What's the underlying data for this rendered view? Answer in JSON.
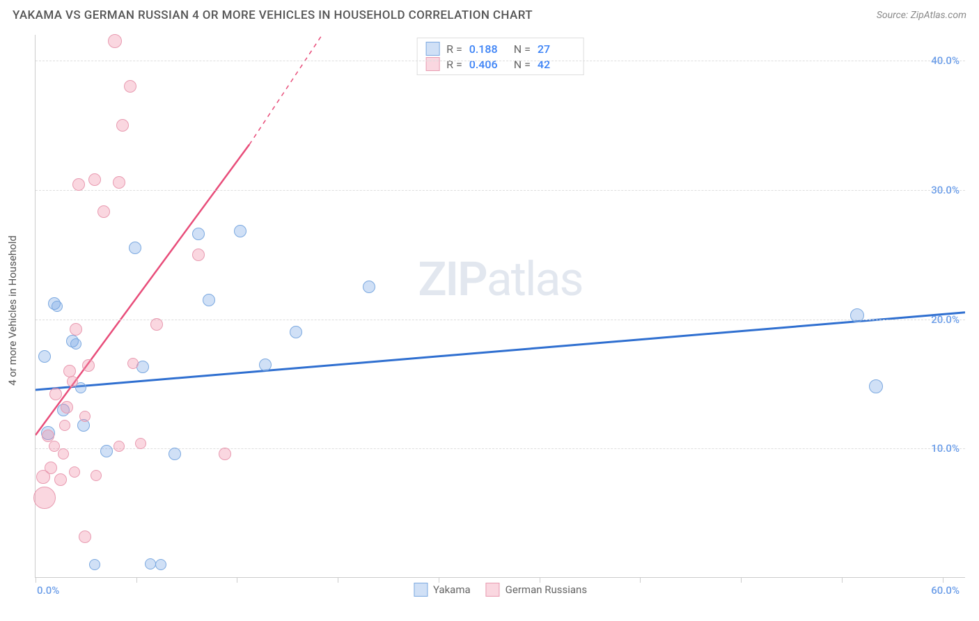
{
  "title": "YAKAMA VS GERMAN RUSSIAN 4 OR MORE VEHICLES IN HOUSEHOLD CORRELATION CHART",
  "source": "Source: ZipAtlas.com",
  "y_axis_title": "4 or more Vehicles in Household",
  "watermark_a": "ZIP",
  "watermark_b": "atlas",
  "chart": {
    "type": "scatter",
    "xlim": [
      0,
      60
    ],
    "ylim": [
      0,
      42
    ],
    "x_tick_positions": [
      0,
      6.5,
      13,
      19.5,
      26,
      32.5,
      39,
      45.5,
      52,
      58.5
    ],
    "x_label_min": "0.0%",
    "x_label_max": "60.0%",
    "y_ticks": [
      {
        "v": 10,
        "label": "10.0%"
      },
      {
        "v": 20,
        "label": "20.0%"
      },
      {
        "v": 30,
        "label": "30.0%"
      },
      {
        "v": 40,
        "label": "40.0%"
      }
    ],
    "background_color": "#ffffff",
    "grid_color": "#dddddd",
    "series": [
      {
        "name": "Yakama",
        "fill": "rgba(120,165,230,0.35)",
        "stroke": "#7aa8e0",
        "reg_color": "#2f6fd0",
        "R": "0.188",
        "N": "27",
        "reg_line": {
          "x1": 0,
          "y1": 14.5,
          "x2": 60,
          "y2": 20.5
        },
        "points": [
          {
            "x": 0.6,
            "y": 17.1,
            "r": 9
          },
          {
            "x": 1.2,
            "y": 21.2,
            "r": 9
          },
          {
            "x": 1.4,
            "y": 21.0,
            "r": 8
          },
          {
            "x": 1.8,
            "y": 13.0,
            "r": 9
          },
          {
            "x": 0.8,
            "y": 11.2,
            "r": 10
          },
          {
            "x": 2.4,
            "y": 18.3,
            "r": 9
          },
          {
            "x": 2.6,
            "y": 18.1,
            "r": 8
          },
          {
            "x": 2.9,
            "y": 14.7,
            "r": 8
          },
          {
            "x": 3.1,
            "y": 11.8,
            "r": 9
          },
          {
            "x": 3.8,
            "y": 1.0,
            "r": 8
          },
          {
            "x": 4.6,
            "y": 9.8,
            "r": 9
          },
          {
            "x": 6.4,
            "y": 25.5,
            "r": 9
          },
          {
            "x": 6.9,
            "y": 16.3,
            "r": 9
          },
          {
            "x": 7.4,
            "y": 1.1,
            "r": 8
          },
          {
            "x": 8.1,
            "y": 1.0,
            "r": 8
          },
          {
            "x": 9.0,
            "y": 9.6,
            "r": 9
          },
          {
            "x": 10.5,
            "y": 26.6,
            "r": 9
          },
          {
            "x": 11.2,
            "y": 21.5,
            "r": 9
          },
          {
            "x": 13.2,
            "y": 26.8,
            "r": 9
          },
          {
            "x": 14.8,
            "y": 16.5,
            "r": 9
          },
          {
            "x": 16.8,
            "y": 19.0,
            "r": 9
          },
          {
            "x": 21.5,
            "y": 22.5,
            "r": 9
          },
          {
            "x": 53.0,
            "y": 20.3,
            "r": 10
          },
          {
            "x": 54.2,
            "y": 14.8,
            "r": 10
          }
        ]
      },
      {
        "name": "German Russians",
        "fill": "rgba(240,140,165,0.35)",
        "stroke": "#e89ab0",
        "reg_color": "#e84d7a",
        "R": "0.406",
        "N": "42",
        "reg_line_solid": {
          "x1": 0,
          "y1": 11.0,
          "x2": 13.8,
          "y2": 33.5
        },
        "reg_line_dashed": {
          "x1": 13.8,
          "y1": 33.5,
          "x2": 18.5,
          "y2": 42.0
        },
        "points": [
          {
            "x": 0.5,
            "y": 7.8,
            "r": 10
          },
          {
            "x": 0.6,
            "y": 6.2,
            "r": 16
          },
          {
            "x": 0.8,
            "y": 11.0,
            "r": 9
          },
          {
            "x": 1.0,
            "y": 8.5,
            "r": 9
          },
          {
            "x": 1.2,
            "y": 10.2,
            "r": 8
          },
          {
            "x": 1.3,
            "y": 14.2,
            "r": 9
          },
          {
            "x": 1.6,
            "y": 7.6,
            "r": 9
          },
          {
            "x": 1.8,
            "y": 9.6,
            "r": 8
          },
          {
            "x": 1.9,
            "y": 11.8,
            "r": 8
          },
          {
            "x": 2.0,
            "y": 13.2,
            "r": 9
          },
          {
            "x": 2.2,
            "y": 16.0,
            "r": 9
          },
          {
            "x": 2.4,
            "y": 15.2,
            "r": 8
          },
          {
            "x": 2.5,
            "y": 8.2,
            "r": 8
          },
          {
            "x": 2.6,
            "y": 19.2,
            "r": 9
          },
          {
            "x": 2.8,
            "y": 30.4,
            "r": 9
          },
          {
            "x": 3.2,
            "y": 12.5,
            "r": 8
          },
          {
            "x": 3.2,
            "y": 3.2,
            "r": 9
          },
          {
            "x": 3.4,
            "y": 16.4,
            "r": 9
          },
          {
            "x": 3.8,
            "y": 30.8,
            "r": 9
          },
          {
            "x": 3.9,
            "y": 7.9,
            "r": 8
          },
          {
            "x": 4.4,
            "y": 28.3,
            "r": 9
          },
          {
            "x": 5.1,
            "y": 41.5,
            "r": 10
          },
          {
            "x": 5.4,
            "y": 10.2,
            "r": 8
          },
          {
            "x": 5.4,
            "y": 30.6,
            "r": 9
          },
          {
            "x": 5.6,
            "y": 35.0,
            "r": 9
          },
          {
            "x": 6.1,
            "y": 38.0,
            "r": 9
          },
          {
            "x": 6.3,
            "y": 16.6,
            "r": 8
          },
          {
            "x": 6.8,
            "y": 10.4,
            "r": 8
          },
          {
            "x": 7.8,
            "y": 19.6,
            "r": 9
          },
          {
            "x": 10.5,
            "y": 25.0,
            "r": 9
          },
          {
            "x": 12.2,
            "y": 9.6,
            "r": 9
          }
        ]
      }
    ]
  },
  "legend_labels": {
    "R": "R =",
    "N": "N ="
  }
}
